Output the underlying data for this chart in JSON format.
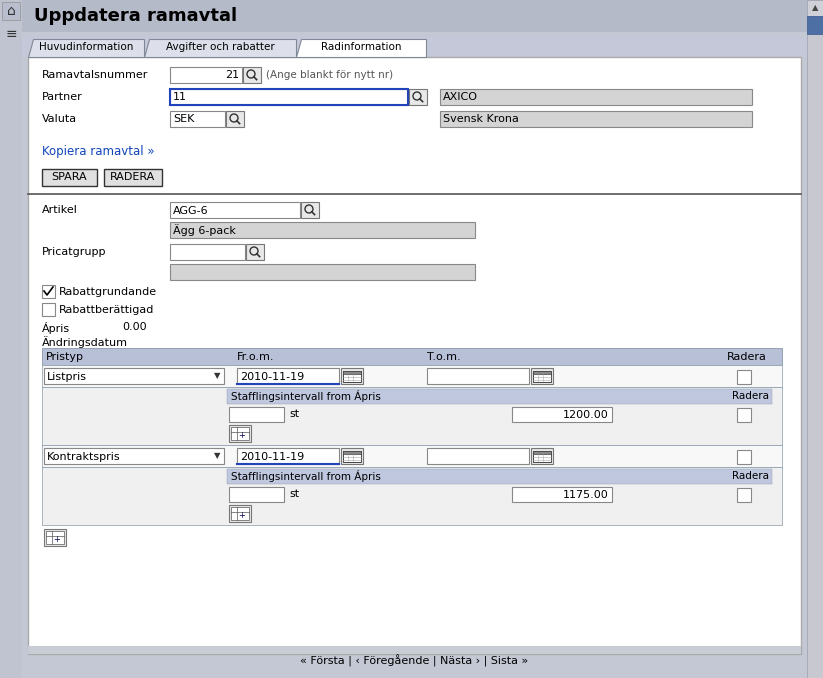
{
  "title": "Uppdatera ramavtal",
  "bg_outer": "#c4c8d4",
  "bg_header": "#b8bece",
  "bg_white": "#ffffff",
  "bg_tab_inactive": "#dde0ea",
  "bg_tab_active": "#ffffff",
  "bg_field_gray": "#d4d4d4",
  "bg_table_header": "#b8c0d8",
  "bg_staffling_header": "#c0c8e0",
  "text_black": "#000000",
  "text_blue_link": "#1144bb",
  "text_gray": "#555555",
  "border_gray": "#888888",
  "border_dark": "#444444",
  "scrollbar_thumb": "#5577aa",
  "tabs": [
    "Huvudinformation",
    "Avgifter och rabatter",
    "Radinformation"
  ],
  "active_tab": 2,
  "ramavtalsnummer": "21",
  "partner_code": "11",
  "partner_name": "AXICO",
  "valuta_code": "SEK",
  "valuta_name": "Svensk Krona",
  "kopiera": "Kopiera ramavtal »",
  "artikel": "AGG-6",
  "artikel_desc": "Ägg 6-pack",
  "apris_label": "Ápris",
  "apris_value": "0.00",
  "andringsdatum": "Ändringsdatum",
  "staffling_label": "Stafflingsintervall from Ápris",
  "staffling_radera": "Radera",
  "row1_pristyp": "Listpris",
  "row1_from": "2010-11-19",
  "row1_apris": "1200.00",
  "row2_pristyp": "Kontraktspris",
  "row2_from": "2010-11-19",
  "row2_apris": "1175.00",
  "footer": "« Första | ‹ Föregående | Nästa › | Sista »"
}
